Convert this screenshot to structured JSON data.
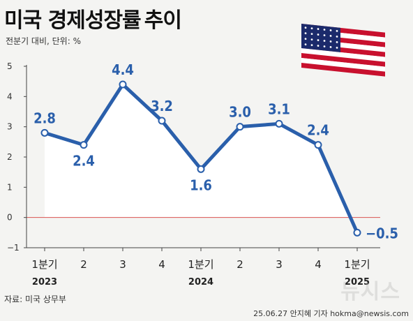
{
  "header": {
    "title_bold": "미국 경제성장률",
    "title_light": "추이",
    "subtitle": "전분기 대비, 단위: %"
  },
  "footer": {
    "source": "자료: 미국 상무부",
    "credit": "25.06.27 안지혜 기자  hokma@newsis.com",
    "watermark": "뉴시스"
  },
  "colors": {
    "line": "#2a5fab",
    "area": "#ffffff",
    "zero_line": "#d9534f",
    "background": "#f4f4f2"
  },
  "chart_data": {
    "type": "line",
    "categories": [
      "1분기",
      "2",
      "3",
      "4",
      "1분기",
      "2",
      "3",
      "4",
      "1분기"
    ],
    "year_labels": [
      {
        "index": 0,
        "label": "2023"
      },
      {
        "index": 4,
        "label": "2024"
      },
      {
        "index": 8,
        "label": "2025"
      }
    ],
    "series": [
      {
        "values": [
          2.8,
          2.4,
          4.4,
          3.2,
          1.6,
          3.0,
          3.1,
          2.4,
          -0.5
        ],
        "labels": [
          "2.8",
          "2.4",
          "4.4",
          "3.2",
          "1.6",
          "3.0",
          "3.1",
          "2.4",
          "−0.5"
        ]
      }
    ],
    "yticks": [
      "−1",
      "0",
      "1",
      "2",
      "3",
      "4",
      "5"
    ],
    "ylim": [
      -1,
      5
    ],
    "grid": false,
    "fill_under": true,
    "zero_line": true
  }
}
